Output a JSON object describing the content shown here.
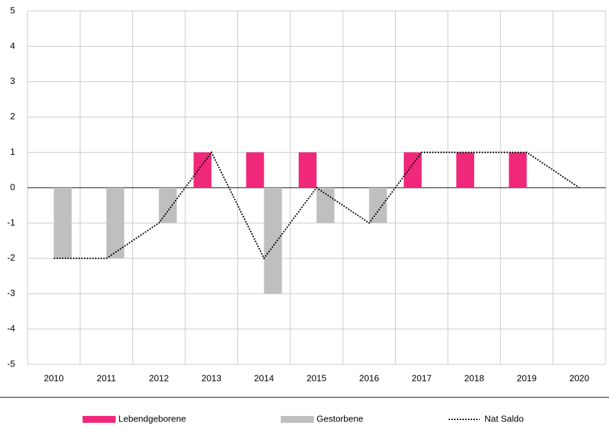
{
  "chart_data": {
    "type": "bar",
    "categories": [
      "2010",
      "2011",
      "2012",
      "2013",
      "2014",
      "2015",
      "2016",
      "2017",
      "2018",
      "2019",
      "2020"
    ],
    "series": [
      {
        "name": "Lebendgeborene",
        "color": "#f0287a",
        "values": [
          0,
          0,
          0,
          1,
          1,
          1,
          0,
          1,
          1,
          1,
          0
        ]
      },
      {
        "name": "Gestorbene",
        "color": "#bfbfbf",
        "values": [
          -2,
          -2,
          -1,
          0,
          -3,
          -1,
          -1,
          0,
          0,
          0,
          0
        ]
      },
      {
        "name": "Nat Saldo",
        "type": "line",
        "color": "#000000",
        "values": [
          -2,
          -2,
          -1,
          1,
          -2,
          0,
          -1,
          1,
          1,
          1,
          0
        ]
      }
    ],
    "ylim": [
      -5,
      5
    ],
    "yticks": [
      -5,
      -4,
      -3,
      -2,
      -1,
      0,
      1,
      2,
      3,
      4,
      5
    ],
    "grid": true,
    "legend": "bottom"
  }
}
